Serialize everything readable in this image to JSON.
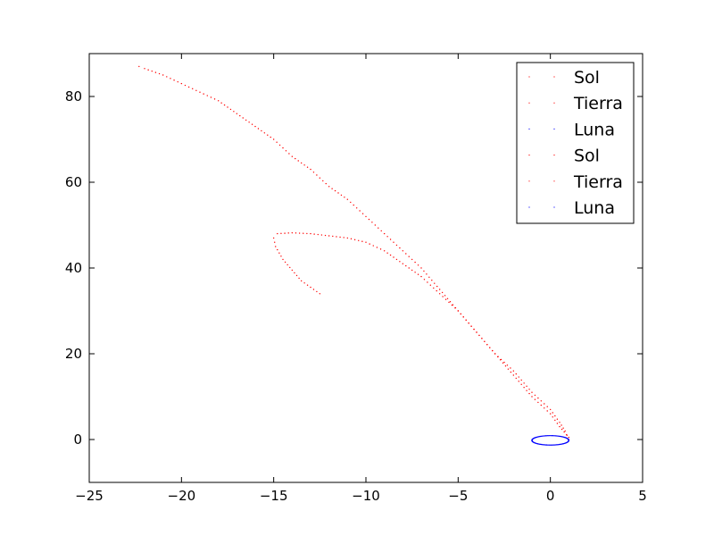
{
  "chart_data": {
    "type": "scatter",
    "title": "",
    "xlabel": "",
    "ylabel": "",
    "xlim": [
      -25,
      5
    ],
    "ylim": [
      -10,
      90
    ],
    "xticks": [
      -25,
      -20,
      -15,
      -10,
      -5,
      0,
      5
    ],
    "yticks": [
      0,
      20,
      40,
      60,
      80
    ],
    "xtick_labels": [
      "−25",
      "−20",
      "−15",
      "−10",
      "−5",
      "0",
      "5"
    ],
    "ytick_labels": [
      "0",
      "20",
      "40",
      "60",
      "80"
    ],
    "grid": false,
    "legend_position": "top-right",
    "legend": [
      "Sol",
      "Tierra",
      "Luna",
      "Sol",
      "Tierra",
      "Luna"
    ],
    "series": [
      {
        "name": "Sol",
        "color": "#ff0000",
        "marker": "dot",
        "points": [
          [
            1.0,
            0.0
          ],
          [
            0.8,
            2.0
          ],
          [
            0.5,
            4.0
          ],
          [
            0.0,
            7.0
          ],
          [
            -1.0,
            11.0
          ],
          [
            -2.0,
            16.0
          ],
          [
            -3.0,
            20.0
          ],
          [
            -4.0,
            25.0
          ],
          [
            -5.0,
            30.0
          ],
          [
            -6.0,
            34.0
          ],
          [
            -7.0,
            38.0
          ],
          [
            -8.0,
            41.0
          ],
          [
            -9.0,
            44.0
          ],
          [
            -10.0,
            46.0
          ],
          [
            -11.0,
            47.0
          ],
          [
            -12.0,
            47.5
          ],
          [
            -13.0,
            48.0
          ],
          [
            -14.0,
            48.2
          ],
          [
            -14.8,
            48.0
          ],
          [
            -15.0,
            47.0
          ],
          [
            -14.9,
            45.0
          ],
          [
            -14.5,
            42.0
          ],
          [
            -14.0,
            39.5
          ],
          [
            -13.5,
            37.0
          ],
          [
            -13.0,
            35.5
          ],
          [
            -12.5,
            34.0
          ]
        ]
      },
      {
        "name": "Tierra",
        "color": "#ff0000",
        "marker": "dot",
        "points": [
          [
            1.0,
            0.5
          ],
          [
            0.5,
            3.0
          ],
          [
            0.0,
            6.0
          ],
          [
            -1.0,
            10.0
          ],
          [
            -2.0,
            15.0
          ],
          [
            -3.0,
            20.0
          ],
          [
            -4.0,
            25.0
          ],
          [
            -5.0,
            30.0
          ],
          [
            -6.0,
            35.0
          ],
          [
            -7.0,
            40.0
          ],
          [
            -8.0,
            44.0
          ],
          [
            -9.0,
            48.0
          ],
          [
            -10.0,
            52.0
          ],
          [
            -11.0,
            56.0
          ],
          [
            -12.0,
            59.0
          ],
          [
            -13.0,
            63.0
          ],
          [
            -14.0,
            66.0
          ],
          [
            -15.0,
            70.0
          ],
          [
            -16.0,
            73.0
          ],
          [
            -17.0,
            76.0
          ],
          [
            -18.0,
            79.0
          ],
          [
            -19.0,
            81.0
          ],
          [
            -20.0,
            83.0
          ],
          [
            -21.0,
            85.0
          ],
          [
            -22.0,
            86.5
          ],
          [
            -22.3,
            87.0
          ]
        ]
      },
      {
        "name": "Luna",
        "color": "#0000ff",
        "marker": "dot",
        "type": "ellipse",
        "center": [
          0.0,
          -0.2
        ],
        "radius_x": 1.0,
        "radius_y": 1.1
      }
    ]
  }
}
